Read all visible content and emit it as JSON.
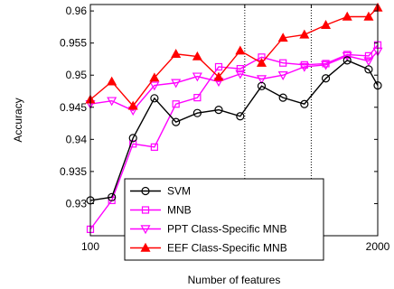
{
  "chart_data": {
    "type": "line",
    "title": "",
    "xlabel": "Number of features",
    "ylabel": "Accuracy",
    "xscale": "log",
    "xlim": [
      100,
      2000
    ],
    "ylim": [
      0.925,
      0.961
    ],
    "xticks": [
      100,
      500,
      1000,
      2000
    ],
    "yticks": [
      0.93,
      0.935,
      0.94,
      0.945,
      0.95,
      0.955,
      0.96
    ],
    "grid": "vertical dotted at 500 and 1000",
    "legend_position": "bottom-right",
    "x": [
      100,
      125,
      156,
      195,
      244,
      305,
      381,
      477,
      596,
      745,
      931,
      1164,
      1455,
      1819,
      2000
    ],
    "series": [
      {
        "name": "SVM",
        "color": "#000000",
        "marker": "circle",
        "values": [
          0.9305,
          0.931,
          0.9402,
          0.9464,
          0.9427,
          0.9441,
          0.9446,
          0.9436,
          0.9483,
          0.9465,
          0.9455,
          0.9495,
          0.9523,
          0.9509,
          0.9484
        ]
      },
      {
        "name": "MNB",
        "color": "#ff00ff",
        "marker": "square",
        "values": [
          0.926,
          0.9305,
          0.9393,
          0.9388,
          0.9455,
          0.9465,
          0.9513,
          0.951,
          0.9528,
          0.9519,
          0.9516,
          0.9518,
          0.9532,
          0.953,
          0.9547
        ]
      },
      {
        "name": "PPT Class-Specific MNB",
        "color": "#ff00ff",
        "marker": "triangle-down",
        "values": [
          0.9455,
          0.946,
          0.9445,
          0.9484,
          0.9488,
          0.9498,
          0.949,
          0.9502,
          0.9494,
          0.95,
          0.9513,
          0.9516,
          0.953,
          0.9522,
          0.9537
        ]
      },
      {
        "name": "EEF Class-Specific MNB",
        "color": "#ff0000",
        "marker": "triangle-up",
        "values": [
          0.9462,
          0.949,
          0.9452,
          0.9496,
          0.9533,
          0.9529,
          0.9497,
          0.9538,
          0.9519,
          0.9558,
          0.9563,
          0.9578,
          0.9591,
          0.9591,
          0.9605
        ]
      }
    ]
  }
}
